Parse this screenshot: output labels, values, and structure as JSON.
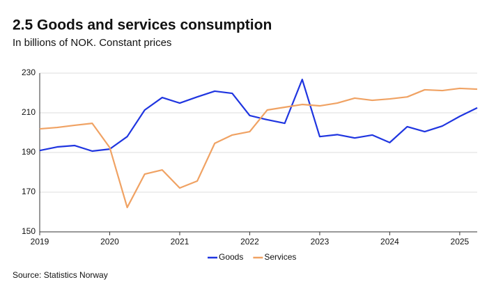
{
  "chart_data": {
    "type": "line",
    "title": "2.5 Goods and services consumption",
    "subtitle": "In billions of NOK. Constant prices",
    "source": "Source: Statistics Norway",
    "x": [
      2019,
      2019.25,
      2019.5,
      2019.75,
      2020,
      2020.25,
      2020.5,
      2020.75,
      2021,
      2021.25,
      2021.5,
      2021.75,
      2022,
      2022.25,
      2022.5,
      2022.75,
      2023,
      2023.25,
      2023.5,
      2023.75,
      2024,
      2024.25,
      2024.5,
      2024.75,
      2025,
      2025.25
    ],
    "series": [
      {
        "name": "Goods",
        "color": "#1f35e0",
        "values": [
          191,
          192.8,
          193.5,
          190.7,
          191.7,
          198,
          211.4,
          217.7,
          214.9,
          218,
          220.9,
          219.8,
          208.6,
          206.5,
          204.7,
          226.8,
          198,
          199,
          197.3,
          198.8,
          195,
          203,
          200.5,
          203.3,
          208.2,
          212.5
        ]
      },
      {
        "name": "Services",
        "color": "#f0a263",
        "values": [
          201.9,
          202.6,
          203.7,
          204.7,
          192.5,
          162.3,
          179.1,
          181.2,
          172.1,
          175.6,
          194.6,
          198.8,
          200.5,
          211.4,
          212.8,
          214.2,
          213.5,
          214.9,
          217.4,
          216.3,
          217,
          218,
          221.6,
          221.2,
          222.3,
          221.9
        ]
      }
    ],
    "xlim": [
      2019,
      2025.25
    ],
    "xticks": [
      2019,
      2020,
      2021,
      2022,
      2023,
      2024,
      2025
    ],
    "ylim": [
      150,
      230
    ],
    "yticks": [
      150,
      170,
      190,
      210,
      230
    ],
    "grid": true,
    "legend": "bottom"
  }
}
